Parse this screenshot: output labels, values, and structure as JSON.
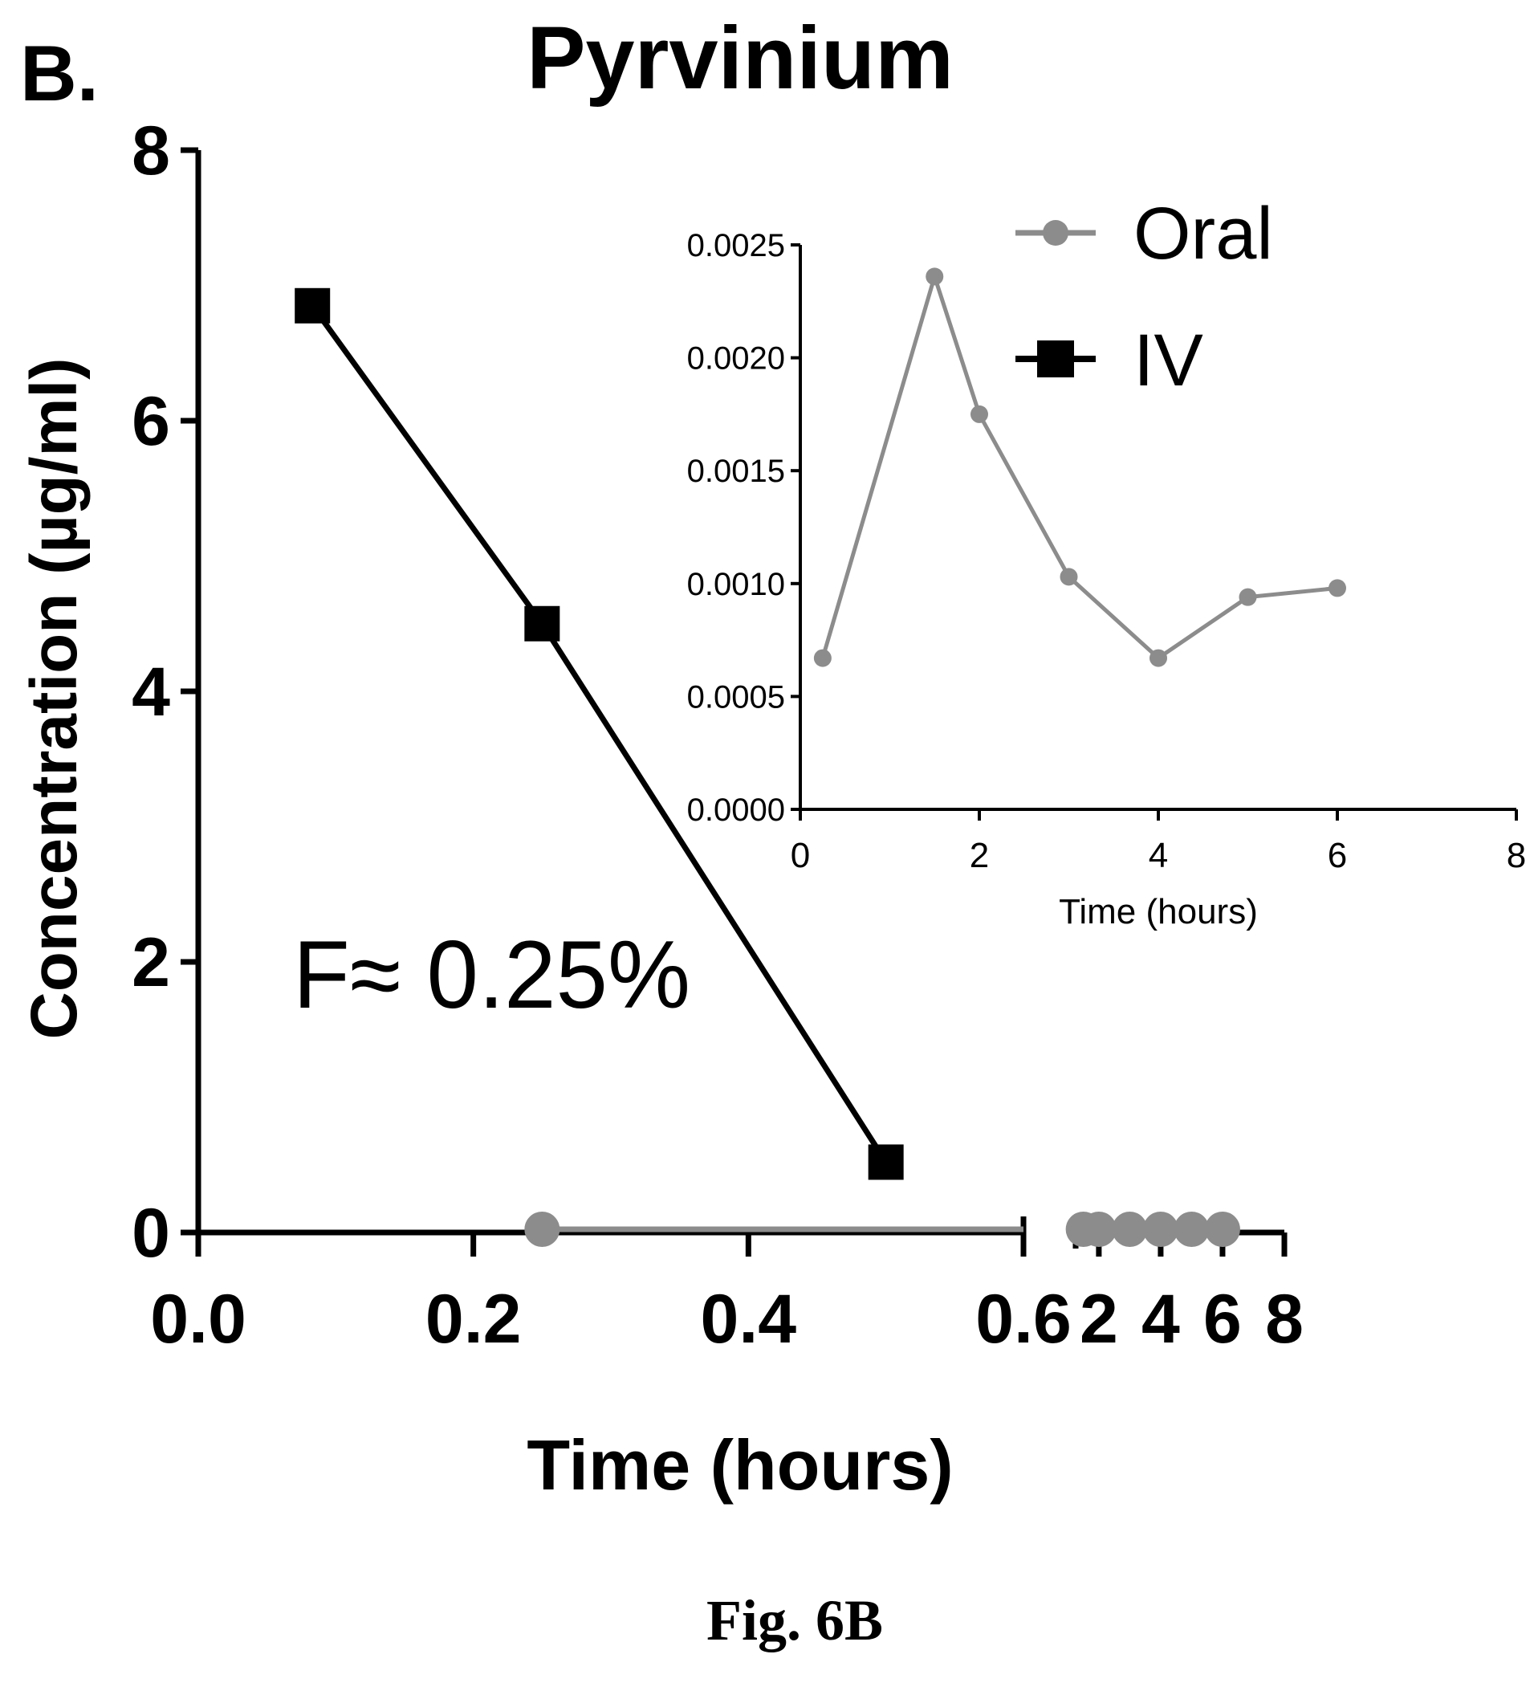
{
  "panel_label": "B.",
  "caption": "Fig. 6B",
  "annotation": "F≈ 0.25%",
  "colors": {
    "oral": "#8c8c8c",
    "iv": "#000000",
    "axis": "#000000"
  },
  "chart_data": [
    {
      "type": "line",
      "title": "Pyrvinium",
      "xlabel": "Time (hours)",
      "ylabel": "Concentration (µg/ml)",
      "x_axis_break": true,
      "x_segments": [
        {
          "xlim": [
            0,
            0.6
          ],
          "ticks": [
            "0.0",
            "0.2",
            "0.4",
            "0.6"
          ],
          "tick_values": [
            0,
            0.2,
            0.4,
            0.6
          ]
        },
        {
          "xlim": [
            1.25,
            8
          ],
          "ticks": [
            "2",
            "4",
            "6",
            "8"
          ],
          "tick_values": [
            2,
            4,
            6,
            8
          ]
        }
      ],
      "ylim": [
        0,
        8
      ],
      "y_ticks": [
        "0",
        "2",
        "4",
        "6",
        "8"
      ],
      "y_tick_values": [
        0,
        2,
        4,
        6,
        8
      ],
      "legend_position": "top-right",
      "series": [
        {
          "name": "Oral",
          "marker": "circle",
          "x": [
            0.25,
            1.5,
            2,
            3,
            4,
            5,
            6
          ],
          "y": [
            0.00067,
            0.00236,
            0.00175,
            0.00103,
            0.00067,
            0.00094,
            0.00098
          ]
        },
        {
          "name": "IV",
          "marker": "square",
          "x": [
            0.083,
            0.25,
            0.5
          ],
          "y": [
            6.85,
            4.5,
            0.52
          ]
        }
      ]
    },
    {
      "type": "line",
      "title": "",
      "xlabel": "Time (hours)",
      "ylabel": "",
      "xlim": [
        0,
        8
      ],
      "x_ticks": [
        "0",
        "2",
        "4",
        "6",
        "8"
      ],
      "x_tick_values": [
        0,
        2,
        4,
        6,
        8
      ],
      "ylim": [
        0,
        0.0025
      ],
      "y_ticks": [
        "0.0000",
        "0.0005",
        "0.0010",
        "0.0015",
        "0.0020",
        "0.0025"
      ],
      "y_tick_values": [
        0,
        0.0005,
        0.001,
        0.0015,
        0.002,
        0.0025
      ],
      "series": [
        {
          "name": "Oral",
          "marker": "circle",
          "x": [
            0.25,
            1.5,
            2,
            3,
            4,
            5,
            6
          ],
          "y": [
            0.00067,
            0.00236,
            0.00175,
            0.00103,
            0.00067,
            0.00094,
            0.00098
          ]
        }
      ]
    }
  ]
}
